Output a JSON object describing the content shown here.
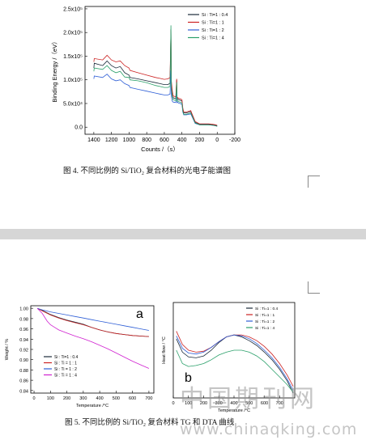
{
  "figure4": {
    "caption": "图 4.  不同比例的 Si/TiO₂ 复合材料的光电子能谱图",
    "chart_data": {
      "type": "line",
      "xlabel": "Counts /（s）",
      "ylabel": "Binding Energy /（eV）",
      "xlim": [
        1500,
        -200
      ],
      "ylim": [
        -0.15,
        2.55
      ],
      "x_ticks": [
        "1400",
        "1200",
        "1000",
        "800",
        "600",
        "400",
        "200",
        "0",
        "-200"
      ],
      "y_ticks": [
        "0.0",
        "5.0x10⁴",
        "1.0x10⁵",
        "1.5x10⁵",
        "2.0x10⁵",
        "2.5x10⁵"
      ],
      "legend_position": "top-right",
      "series": [
        {
          "name": "Si : Ti=1 : 0.4",
          "color": "#1a2a3a",
          "x": [
            1400,
            1395,
            1300,
            1250,
            1200,
            1150,
            1100,
            1050,
            1000,
            990,
            900,
            800,
            700,
            650,
            600,
            560,
            535,
            525,
            520,
            510,
            500,
            470,
            460,
            455,
            450,
            440,
            420,
            400,
            390,
            380,
            350,
            300,
            290,
            250,
            200,
            150,
            100,
            50,
            20,
            0
          ],
          "y": [
            1.25,
            1.35,
            1.3,
            1.4,
            1.3,
            1.25,
            1.28,
            1.15,
            1.1,
            1.05,
            1.02,
            0.98,
            0.94,
            0.92,
            0.9,
            0.9,
            0.93,
            2.07,
            0.88,
            0.7,
            0.62,
            0.6,
            1.0,
            0.58,
            0.6,
            0.58,
            0.57,
            0.55,
            0.38,
            0.3,
            0.3,
            0.33,
            0.28,
            0.1,
            0.06,
            0.06,
            0.06,
            0.05,
            0.04,
            0.03
          ]
        },
        {
          "name": "Si : Ti=1 : 1",
          "color": "#cc2222",
          "x": [
            1400,
            1395,
            1300,
            1250,
            1200,
            1150,
            1100,
            1050,
            1000,
            990,
            900,
            800,
            700,
            650,
            600,
            560,
            535,
            525,
            520,
            510,
            500,
            470,
            460,
            455,
            450,
            440,
            420,
            400,
            390,
            380,
            350,
            300,
            290,
            250,
            200,
            150,
            100,
            50,
            20,
            0
          ],
          "y": [
            1.38,
            1.45,
            1.42,
            1.52,
            1.42,
            1.38,
            1.4,
            1.3,
            1.25,
            1.2,
            1.15,
            1.1,
            1.05,
            1.03,
            1.01,
            1.02,
            1.05,
            2.05,
            0.98,
            0.78,
            0.66,
            0.64,
            1.02,
            0.62,
            0.63,
            0.61,
            0.6,
            0.58,
            0.4,
            0.32,
            0.32,
            0.35,
            0.3,
            0.12,
            0.07,
            0.07,
            0.07,
            0.06,
            0.05,
            0.04
          ]
        },
        {
          "name": "Si : Ti=1 : 2",
          "color": "#2f5fd6",
          "x": [
            1400,
            1395,
            1300,
            1250,
            1200,
            1150,
            1100,
            1050,
            1000,
            990,
            900,
            800,
            700,
            650,
            600,
            560,
            535,
            525,
            520,
            510,
            500,
            470,
            460,
            455,
            450,
            440,
            420,
            400,
            390,
            380,
            350,
            300,
            290,
            250,
            200,
            150,
            100,
            50,
            20,
            0
          ],
          "y": [
            1.02,
            1.08,
            1.05,
            1.12,
            1.02,
            0.98,
            1.0,
            0.92,
            0.88,
            0.84,
            0.8,
            0.76,
            0.72,
            0.7,
            0.68,
            0.68,
            0.7,
            1.2,
            0.65,
            0.55,
            0.53,
            0.52,
            0.8,
            0.52,
            0.53,
            0.51,
            0.5,
            0.48,
            0.32,
            0.26,
            0.26,
            0.28,
            0.24,
            0.08,
            0.05,
            0.05,
            0.05,
            0.04,
            0.03,
            0.02
          ]
        },
        {
          "name": "Si : Ti=1 : 4",
          "color": "#2aa06a",
          "x": [
            1400,
            1395,
            1300,
            1250,
            1200,
            1150,
            1100,
            1050,
            1000,
            990,
            900,
            800,
            700,
            650,
            600,
            560,
            535,
            525,
            520,
            510,
            500,
            470,
            460,
            455,
            450,
            440,
            420,
            400,
            390,
            380,
            350,
            300,
            290,
            250,
            200,
            150,
            100,
            50,
            20,
            0
          ],
          "y": [
            1.18,
            1.25,
            1.22,
            1.3,
            1.2,
            1.15,
            1.18,
            1.06,
            1.05,
            1.0,
            0.98,
            0.94,
            0.88,
            0.86,
            0.84,
            0.84,
            0.86,
            2.15,
            0.82,
            0.66,
            0.58,
            0.56,
            0.95,
            0.55,
            0.56,
            0.54,
            0.53,
            0.51,
            0.34,
            0.27,
            0.27,
            0.3,
            0.26,
            0.09,
            0.05,
            0.05,
            0.05,
            0.04,
            0.03,
            0.02
          ]
        }
      ]
    }
  },
  "figure5": {
    "caption": "图 5.  不同比例的 Si/TiO₂ 复合材料 TG 和 DTA 曲线",
    "panel_a": {
      "label": "a",
      "chart_data": {
        "type": "line",
        "xlabel": "Temperature /°C",
        "ylabel": "Weight / %",
        "xlim": [
          -20,
          730
        ],
        "ylim": [
          0.835,
          1.005
        ],
        "x_ticks": [
          "0",
          "100",
          "200",
          "300",
          "400",
          "500",
          "600",
          "700"
        ],
        "y_ticks": [
          "0.84",
          "0.86",
          "0.88",
          "0.90",
          "0.92",
          "0.94",
          "0.96",
          "0.98",
          "1.00"
        ],
        "legend_position": "bottom-left",
        "series": [
          {
            "name": "Si : Ti=1 : 0.4",
            "color": "#1a2a3a",
            "x": [
              20,
              50,
              100,
              150,
              200,
              250,
              300,
              350,
              400,
              450,
              500,
              550,
              600,
              650,
              700
            ],
            "y": [
              1.0,
              0.996,
              0.988,
              0.982,
              0.977,
              0.973,
              0.969,
              0.963,
              0.958,
              0.954,
              0.951,
              0.949,
              0.947,
              0.946,
              0.945
            ]
          },
          {
            "name": "Si : Ti = 1 : 1",
            "color": "#cc2222",
            "x": [
              20,
              50,
              100,
              150,
              200,
              250,
              300,
              350,
              400,
              450,
              500,
              550,
              600,
              650,
              700
            ],
            "y": [
              1.0,
              0.995,
              0.987,
              0.981,
              0.976,
              0.972,
              0.968,
              0.963,
              0.958,
              0.954,
              0.951,
              0.949,
              0.947,
              0.946,
              0.945
            ]
          },
          {
            "name": "Si : Ti = 1 : 2",
            "color": "#2f5fd6",
            "x": [
              20,
              50,
              100,
              150,
              200,
              250,
              300,
              350,
              400,
              450,
              500,
              550,
              600,
              650,
              700
            ],
            "y": [
              1.0,
              0.997,
              0.993,
              0.99,
              0.987,
              0.984,
              0.981,
              0.978,
              0.975,
              0.972,
              0.969,
              0.966,
              0.963,
              0.96,
              0.957
            ]
          },
          {
            "name": "Si : Ti = 1 : 4",
            "color": "#d020d0",
            "x": [
              20,
              50,
              80,
              100,
              130,
              150,
              200,
              250,
              300,
              350,
              400,
              450,
              500,
              550,
              600,
              650,
              700
            ],
            "y": [
              1.0,
              0.99,
              0.975,
              0.968,
              0.962,
              0.958,
              0.952,
              0.946,
              0.941,
              0.935,
              0.928,
              0.921,
              0.913,
              0.905,
              0.897,
              0.89,
              0.883
            ]
          }
        ]
      }
    },
    "panel_b": {
      "label": "b",
      "chart_data": {
        "type": "line",
        "xlabel": "Temperature /°C",
        "ylabel": "Heat flow / °C",
        "xlim": [
          0,
          800
        ],
        "ylim": [
          0,
          1
        ],
        "x_ticks": [
          "0",
          "100",
          "200",
          "300",
          "400",
          "500",
          "600",
          "700"
        ],
        "legend_position": "top-right",
        "series": [
          {
            "name": "Si : Ti=1 : 0.4",
            "color": "#1a2a3a",
            "x": [
              20,
              60,
              100,
              150,
              200,
              250,
              300,
              350,
              400,
              450,
              500,
              550,
              600,
              650,
              700,
              750,
              790
            ],
            "y": [
              0.62,
              0.48,
              0.43,
              0.42,
              0.44,
              0.5,
              0.58,
              0.64,
              0.66,
              0.64,
              0.6,
              0.55,
              0.48,
              0.4,
              0.3,
              0.18,
              0.05
            ]
          },
          {
            "name": "Si : Ti=1 : 1",
            "color": "#cc2222",
            "x": [
              20,
              60,
              100,
              150,
              200,
              250,
              300,
              350,
              400,
              450,
              500,
              550,
              600,
              650,
              700,
              750,
              790
            ],
            "y": [
              0.7,
              0.56,
              0.5,
              0.48,
              0.49,
              0.53,
              0.59,
              0.64,
              0.66,
              0.66,
              0.64,
              0.6,
              0.54,
              0.46,
              0.36,
              0.24,
              0.12
            ]
          },
          {
            "name": "Si : Ti=1 : 2",
            "color": "#2f5fd6",
            "x": [
              20,
              60,
              100,
              150,
              200,
              250,
              300,
              350,
              400,
              450,
              500,
              550,
              600,
              650,
              700,
              750,
              790
            ],
            "y": [
              0.65,
              0.52,
              0.47,
              0.46,
              0.48,
              0.53,
              0.59,
              0.64,
              0.66,
              0.65,
              0.62,
              0.57,
              0.5,
              0.42,
              0.32,
              0.2,
              0.08
            ]
          },
          {
            "name": "Si : Ti=1 : 4",
            "color": "#2aa06a",
            "x": [
              20,
              60,
              100,
              150,
              200,
              250,
              300,
              350,
              400,
              450,
              500,
              550,
              600,
              650,
              700,
              750,
              790
            ],
            "y": [
              0.5,
              0.36,
              0.33,
              0.34,
              0.36,
              0.4,
              0.45,
              0.48,
              0.5,
              0.5,
              0.48,
              0.44,
              0.38,
              0.3,
              0.22,
              0.14,
              0.06
            ]
          }
        ]
      }
    }
  },
  "watermark": {
    "cn": "中国期刊网",
    "url": "www.chinaqking.com"
  }
}
